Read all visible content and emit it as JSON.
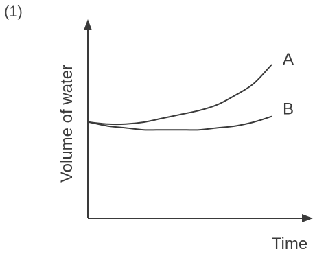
{
  "part_label": "(1)",
  "chart_data": {
    "type": "line",
    "title": "",
    "xlabel": "Time",
    "ylabel": "Volume of water",
    "x_ticks": [],
    "y_ticks": [],
    "grid": false,
    "x": [
      0,
      0.1,
      0.2,
      0.3,
      0.4,
      0.5,
      0.6,
      0.7,
      0.8,
      0.9,
      1.0
    ],
    "series": [
      {
        "name": "A",
        "values": [
          0.5,
          0.49,
          0.49,
          0.5,
          0.52,
          0.54,
          0.56,
          0.59,
          0.64,
          0.7,
          0.8
        ]
      },
      {
        "name": "B",
        "values": [
          0.5,
          0.48,
          0.47,
          0.46,
          0.46,
          0.46,
          0.46,
          0.47,
          0.48,
          0.5,
          0.53
        ]
      }
    ],
    "colors": {
      "axis": "#3a3a3a",
      "line": "#3a3a3a"
    }
  }
}
